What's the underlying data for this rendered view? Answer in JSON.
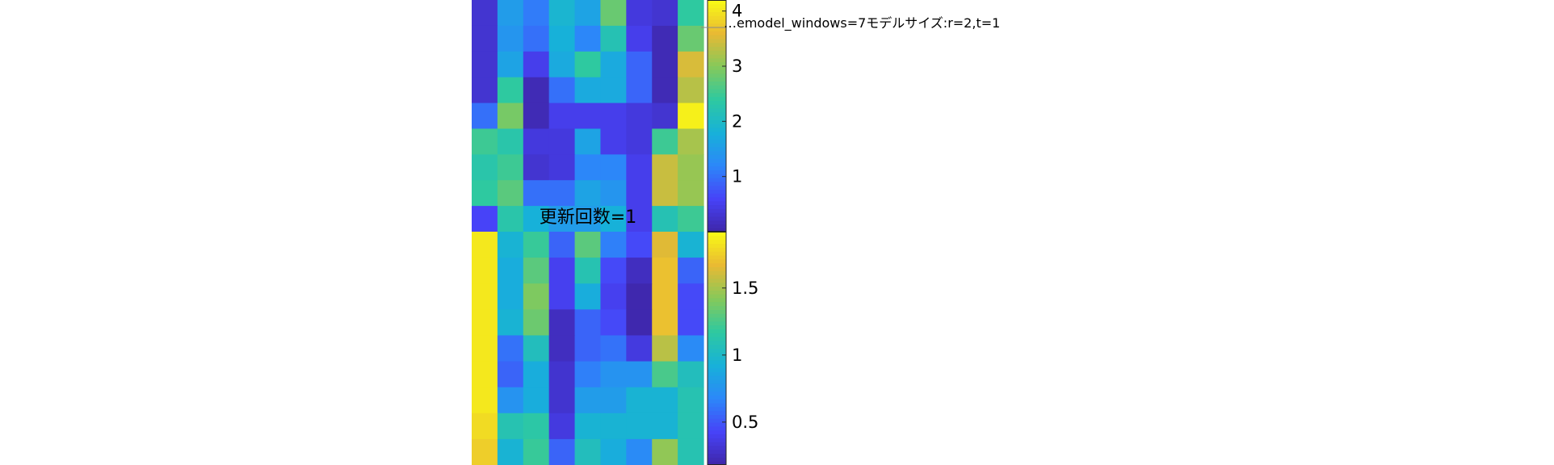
{
  "figure": {
    "header_text": "…emodel_windows=7モデルサイズ:r=2,t=1",
    "overlay_title": "更新回数=1"
  },
  "colormap": [
    "#3e26a8",
    "#4743f8",
    "#2c87f9",
    "#17b1d9",
    "#2ec9a0",
    "#86c95a",
    "#e9b933",
    "#f9fb15"
  ],
  "chart_data": [
    {
      "type": "heatmap",
      "title": "",
      "xlabel": "",
      "ylabel": "",
      "rows": 9,
      "cols": 9,
      "clim": [
        0,
        4.2
      ],
      "colorbar_ticks": [
        "1",
        "2",
        "3",
        "4"
      ],
      "colorbar_tick_values": [
        1,
        2,
        3,
        4
      ],
      "values": [
        [
          0.3,
          1.5,
          1.1,
          1.9,
          1.6,
          2.8,
          0.4,
          0.3,
          2.4
        ],
        [
          0.3,
          1.4,
          1.0,
          1.8,
          1.2,
          2.2,
          0.5,
          0.1,
          2.8
        ],
        [
          0.3,
          1.6,
          0.5,
          1.7,
          2.4,
          1.7,
          0.9,
          0.1,
          3.5
        ],
        [
          0.3,
          2.4,
          0.1,
          1.0,
          1.7,
          1.7,
          0.9,
          0.1,
          3.3
        ],
        [
          1.0,
          2.9,
          0.1,
          0.5,
          0.5,
          0.5,
          0.4,
          0.3,
          4.1
        ],
        [
          2.5,
          2.3,
          0.4,
          0.4,
          1.6,
          0.5,
          0.4,
          2.5,
          3.2
        ],
        [
          2.3,
          2.5,
          0.3,
          0.4,
          1.2,
          1.2,
          0.5,
          3.4,
          3.1
        ],
        [
          2.4,
          2.7,
          1.0,
          1.0,
          1.6,
          1.4,
          0.5,
          3.4,
          3.1
        ],
        [
          0.6,
          2.3,
          1.8,
          1.5,
          1.5,
          1.8,
          0.5,
          2.2,
          2.5
        ]
      ]
    },
    {
      "type": "heatmap",
      "title": "更新回数=1",
      "xlabel": "",
      "ylabel": "",
      "rows": 9,
      "cols": 9,
      "clim": [
        0.18,
        1.92
      ],
      "colorbar_ticks": [
        "0.5",
        "1",
        "1.5"
      ],
      "colorbar_tick_values": [
        0.5,
        1,
        1.5
      ],
      "values": [
        [
          1.85,
          0.95,
          1.2,
          0.55,
          1.3,
          0.65,
          0.45,
          1.65,
          0.95
        ],
        [
          1.85,
          0.9,
          1.3,
          0.4,
          1.1,
          0.45,
          0.25,
          1.7,
          0.55
        ],
        [
          1.85,
          0.9,
          1.4,
          0.4,
          0.9,
          0.4,
          0.2,
          1.7,
          0.45
        ],
        [
          1.85,
          0.95,
          1.35,
          0.25,
          0.55,
          0.45,
          0.2,
          1.7,
          0.45
        ],
        [
          1.85,
          0.6,
          1.05,
          0.25,
          0.55,
          0.6,
          0.35,
          1.55,
          0.7
        ],
        [
          1.85,
          0.55,
          0.9,
          0.3,
          0.65,
          0.75,
          0.75,
          1.25,
          1.05
        ],
        [
          1.85,
          0.75,
          0.9,
          0.3,
          0.8,
          0.8,
          0.95,
          0.95,
          1.1
        ],
        [
          1.8,
          1.1,
          1.15,
          0.35,
          0.95,
          0.95,
          0.95,
          0.95,
          1.1
        ],
        [
          1.75,
          0.95,
          1.2,
          0.55,
          1.05,
          0.9,
          0.7,
          1.45,
          1.1
        ]
      ]
    }
  ]
}
